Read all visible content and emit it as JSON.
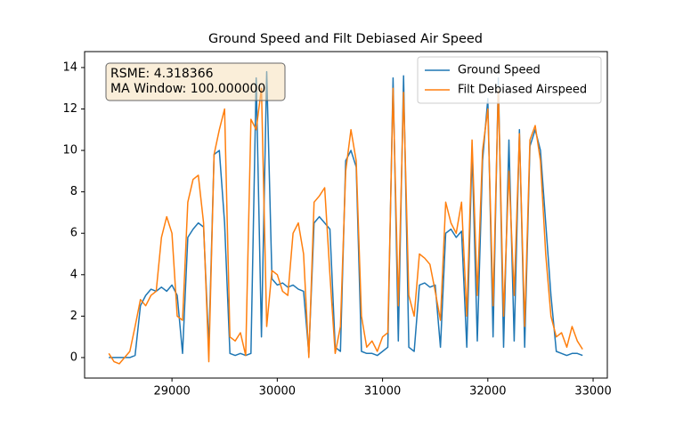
{
  "chart_data": {
    "type": "line",
    "title": "Ground Speed and Filt Debiased Air Speed",
    "annotation": [
      "RSME: 4.318366",
      "MA Window: 100.000000"
    ],
    "legend": "upper right",
    "x": [
      28400,
      28450,
      28500,
      28550,
      28600,
      28650,
      28700,
      28750,
      28800,
      28850,
      28900,
      28950,
      29000,
      29050,
      29100,
      29150,
      29200,
      29250,
      29300,
      29350,
      29400,
      29450,
      29500,
      29550,
      29600,
      29650,
      29700,
      29750,
      29800,
      29850,
      29900,
      29950,
      30000,
      30050,
      30100,
      30150,
      30200,
      30250,
      30300,
      30350,
      30400,
      30450,
      30500,
      30550,
      30600,
      30650,
      30700,
      30750,
      30800,
      30850,
      30900,
      30950,
      31000,
      31050,
      31100,
      31150,
      31200,
      31250,
      31300,
      31350,
      31400,
      31450,
      31500,
      31550,
      31600,
      31650,
      31700,
      31750,
      31800,
      31850,
      31900,
      31950,
      32000,
      32050,
      32100,
      32150,
      32200,
      32250,
      32300,
      32350,
      32400,
      32450,
      32500,
      32550,
      32600,
      32650,
      32700,
      32750,
      32800,
      32850,
      32900
    ],
    "series": [
      {
        "name": "Ground Speed",
        "color": "#1f77b4",
        "values": [
          0,
          0,
          0,
          0,
          0,
          0.1,
          2.5,
          3.0,
          3.3,
          3.2,
          3.4,
          3.2,
          3.5,
          3.0,
          0.2,
          5.8,
          6.2,
          6.5,
          6.3,
          0.5,
          9.8,
          10.0,
          6.5,
          0.2,
          0.1,
          0.2,
          0.1,
          0.2,
          13.5,
          1.0,
          13.8,
          3.8,
          3.5,
          3.6,
          3.4,
          3.5,
          3.3,
          3.2,
          0.2,
          6.5,
          6.8,
          6.5,
          6.2,
          0.5,
          0.3,
          9.5,
          10.0,
          9.2,
          0.3,
          0.2,
          0.2,
          0.1,
          0.3,
          0.5,
          13.5,
          0.8,
          13.6,
          0.5,
          0.3,
          3.5,
          3.6,
          3.4,
          3.5,
          0.5,
          6.0,
          6.2,
          5.8,
          6.1,
          0.5,
          10.0,
          0.8,
          9.5,
          12.5,
          1.0,
          13.5,
          0.5,
          10.5,
          0.8,
          11.0,
          0.5,
          10.2,
          11.0,
          10.0,
          6.5,
          3.0,
          0.3,
          0.2,
          0.1,
          0.2,
          0.2,
          0.1
        ]
      },
      {
        "name": "Filt Debiased Airspeed",
        "color": "#ff7f0e",
        "values": [
          0.2,
          -0.2,
          -0.3,
          0.0,
          0.3,
          1.5,
          2.8,
          2.5,
          3.0,
          3.2,
          5.8,
          6.8,
          6.0,
          2.0,
          1.8,
          7.5,
          8.6,
          8.8,
          6.5,
          -0.2,
          9.8,
          11.0,
          12.0,
          1.0,
          0.8,
          1.2,
          0.1,
          11.5,
          11.0,
          13.0,
          1.5,
          4.2,
          4.0,
          3.2,
          3.0,
          6.0,
          6.5,
          5.0,
          0.0,
          7.5,
          7.8,
          8.2,
          4.0,
          0.2,
          1.5,
          9.0,
          11.0,
          9.5,
          2.0,
          0.5,
          0.8,
          0.3,
          1.0,
          1.2,
          13.0,
          2.5,
          12.8,
          3.0,
          2.0,
          5.0,
          4.8,
          4.5,
          3.2,
          1.8,
          7.5,
          6.5,
          6.0,
          7.5,
          2.0,
          10.5,
          3.0,
          10.0,
          12.0,
          2.5,
          13.0,
          2.0,
          9.0,
          3.0,
          10.8,
          1.5,
          10.5,
          11.2,
          9.5,
          5.0,
          2.0,
          1.0,
          1.2,
          0.5,
          1.5,
          0.8,
          0.4
        ]
      }
    ],
    "xlim": [
      28170,
      33135
    ],
    "ylim": [
      -0.99,
      14.77
    ],
    "xticks": [
      29000,
      30000,
      31000,
      32000,
      33000
    ],
    "yticks": [
      0,
      2,
      4,
      6,
      8,
      10,
      12,
      14
    ]
  }
}
